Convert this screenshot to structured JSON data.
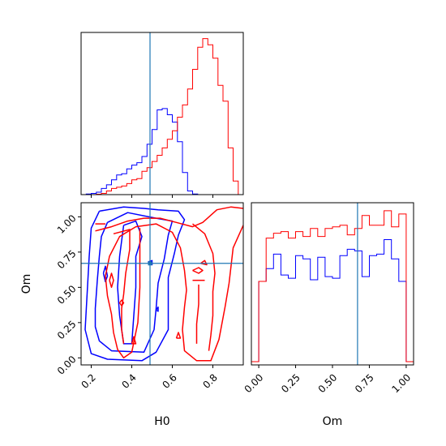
{
  "chart_data": [
    {
      "panel": "H0 marginal",
      "type": "histogram",
      "xlim": [
        0.15,
        0.95
      ],
      "truth_x": 0.49,
      "bins": [
        0.15,
        0.175,
        0.2,
        0.225,
        0.25,
        0.275,
        0.3,
        0.325,
        0.35,
        0.375,
        0.4,
        0.425,
        0.45,
        0.475,
        0.5,
        0.525,
        0.55,
        0.575,
        0.6,
        0.625,
        0.65,
        0.675,
        0.7,
        0.725,
        0.75,
        0.775,
        0.8,
        0.825,
        0.85,
        0.875,
        0.9,
        0.925,
        0.95
      ],
      "series": [
        {
          "color": "#0000ff",
          "values": [
            0,
            0.5,
            1,
            2,
            5,
            8,
            12,
            16,
            17,
            21,
            24,
            26,
            31,
            41,
            53,
            69,
            70,
            65,
            59,
            43,
            18,
            3,
            0.5,
            0,
            0,
            0,
            0,
            0,
            0,
            0,
            0,
            0
          ]
        },
        {
          "color": "#ff0000",
          "values": [
            0,
            0,
            0,
            0.3,
            1,
            3,
            5,
            6,
            7,
            9,
            12,
            13,
            19,
            22,
            27,
            32,
            38,
            45,
            52,
            63,
            73,
            86,
            102,
            120,
            127,
            122,
            111,
            89,
            76,
            38,
            11,
            0
          ]
        }
      ]
    },
    {
      "panel": "Om marginal",
      "type": "histogram",
      "xlim": [
        -0.05,
        1.05
      ],
      "truth_x": 0.67,
      "xticks": [
        "0.00",
        "0.25",
        "0.50",
        "0.75",
        "1.00"
      ],
      "xlabel": "Om",
      "bins": [
        -0.05,
        0.0,
        0.05,
        0.1,
        0.15,
        0.2,
        0.25,
        0.3,
        0.35,
        0.4,
        0.45,
        0.5,
        0.55,
        0.6,
        0.65,
        0.7,
        0.75,
        0.8,
        0.85,
        0.9,
        0.95,
        1.0,
        1.05
      ],
      "series": [
        {
          "color": "#0000ff",
          "values": [
            2,
            52,
            60,
            69,
            56,
            54,
            68,
            66,
            53,
            67,
            55,
            54,
            68,
            72,
            71,
            55,
            68,
            69,
            78,
            66,
            52,
            2
          ]
        },
        {
          "color": "#ff0000",
          "values": [
            2,
            52,
            79,
            82,
            83,
            79,
            83,
            80,
            85,
            80,
            85,
            86,
            87,
            81,
            85,
            93,
            87,
            87,
            96,
            86,
            94,
            2
          ]
        }
      ]
    },
    {
      "panel": "H0 vs Om contours",
      "type": "contour",
      "xlim": [
        0.15,
        0.95
      ],
      "ylim": [
        -0.05,
        1.1
      ],
      "xticks": [
        "0.2",
        "0.4",
        "0.6",
        "0.8"
      ],
      "yticks": [
        "0.00",
        "0.25",
        "0.50",
        "0.75",
        "1.00"
      ],
      "xlabel": "H0",
      "ylabel": "Om",
      "truth": {
        "H0": 0.49,
        "Om": 0.67
      },
      "series": [
        {
          "color": "#0000ff",
          "contours": [
            [
              [
                0.24,
                1.04
              ],
              [
                0.36,
                1.07
              ],
              [
                0.46,
                1.06
              ],
              [
                0.53,
                1.05
              ],
              [
                0.63,
                1.04
              ],
              [
                0.66,
                0.98
              ],
              [
                0.63,
                0.87
              ],
              [
                0.61,
                0.74
              ],
              [
                0.58,
                0.57
              ],
              [
                0.58,
                0.38
              ],
              [
                0.58,
                0.2
              ],
              [
                0.52,
                0.04
              ],
              [
                0.45,
                -0.02
              ],
              [
                0.28,
                -0.01
              ],
              [
                0.2,
                0.03
              ],
              [
                0.17,
                0.2
              ],
              [
                0.18,
                0.46
              ],
              [
                0.19,
                0.72
              ],
              [
                0.2,
                0.92
              ],
              [
                0.24,
                1.04
              ]
            ],
            [
              [
                0.28,
                0.96
              ],
              [
                0.38,
                1.03
              ],
              [
                0.52,
                0.99
              ],
              [
                0.6,
                0.97
              ],
              [
                0.58,
                0.87
              ],
              [
                0.56,
                0.7
              ],
              [
                0.53,
                0.53
              ],
              [
                0.52,
                0.35
              ],
              [
                0.51,
                0.2
              ],
              [
                0.46,
                0.04
              ],
              [
                0.3,
                0.05
              ],
              [
                0.24,
                0.12
              ],
              [
                0.22,
                0.22
              ],
              [
                0.22,
                0.35
              ],
              [
                0.23,
                0.55
              ],
              [
                0.24,
                0.72
              ],
              [
                0.25,
                0.86
              ],
              [
                0.28,
                0.96
              ]
            ],
            [
              [
                0.36,
                0.94
              ],
              [
                0.42,
                0.97
              ],
              [
                0.45,
                0.86
              ],
              [
                0.42,
                0.72
              ],
              [
                0.42,
                0.5
              ],
              [
                0.41,
                0.3
              ],
              [
                0.4,
                0.1
              ],
              [
                0.36,
                0.1
              ],
              [
                0.34,
                0.3
              ],
              [
                0.33,
                0.5
              ],
              [
                0.34,
                0.72
              ],
              [
                0.36,
                0.94
              ]
            ],
            [
              [
                0.26,
                0.6
              ],
              [
                0.27,
                0.65
              ],
              [
                0.28,
                0.58
              ],
              [
                0.27,
                0.54
              ],
              [
                0.26,
                0.6
              ]
            ],
            [
              [
                0.48,
                0.68
              ],
              [
                0.5,
                0.69
              ],
              [
                0.5,
                0.66
              ],
              [
                0.48,
                0.68
              ]
            ],
            [
              [
                0.52,
                0.34
              ],
              [
                0.53,
                0.36
              ],
              [
                0.53,
                0.33
              ],
              [
                0.52,
                0.34
              ]
            ]
          ]
        },
        {
          "color": "#ff0000",
          "contours": [
            [
              [
                0.22,
                0.9
              ],
              [
                0.3,
                0.93
              ],
              [
                0.38,
                0.97
              ],
              [
                0.46,
                0.99
              ],
              [
                0.54,
                0.99
              ],
              [
                0.62,
                0.96
              ],
              [
                0.7,
                0.93
              ],
              [
                0.75,
                0.96
              ],
              [
                0.82,
                1.05
              ],
              [
                0.89,
                1.07
              ],
              [
                0.95,
                1.06
              ]
            ],
            [
              [
                0.95,
                0.94
              ],
              [
                0.9,
                0.78
              ],
              [
                0.88,
                0.53
              ],
              [
                0.86,
                0.36
              ],
              [
                0.83,
                0.13
              ],
              [
                0.79,
                -0.02
              ],
              [
                0.72,
                -0.02
              ],
              [
                0.66,
                0.05
              ],
              [
                0.65,
                0.2
              ],
              [
                0.66,
                0.36
              ],
              [
                0.67,
                0.48
              ],
              [
                0.66,
                0.62
              ],
              [
                0.64,
                0.78
              ],
              [
                0.6,
                0.89
              ],
              [
                0.52,
                0.95
              ],
              [
                0.42,
                0.93
              ],
              [
                0.34,
                0.86
              ],
              [
                0.29,
                0.72
              ],
              [
                0.27,
                0.58
              ],
              [
                0.28,
                0.44
              ],
              [
                0.3,
                0.31
              ],
              [
                0.31,
                0.18
              ],
              [
                0.33,
                0.06
              ],
              [
                0.36,
                0.0
              ],
              [
                0.4,
                0.04
              ],
              [
                0.43,
                0.25
              ],
              [
                0.44,
                0.5
              ],
              [
                0.44,
                0.74
              ],
              [
                0.44,
                0.92
              ]
            ],
            [
              [
                0.31,
                0.88
              ],
              [
                0.39,
                0.91
              ],
              [
                0.39,
                0.77
              ],
              [
                0.37,
                0.6
              ],
              [
                0.36,
                0.45
              ],
              [
                0.35,
                0.35
              ],
              [
                0.35,
                0.2
              ],
              [
                0.36,
                0.1
              ]
            ],
            [
              [
                0.7,
                0.95
              ],
              [
                0.76,
                0.88
              ],
              [
                0.8,
                0.74
              ],
              [
                0.81,
                0.6
              ],
              [
                0.8,
                0.47
              ],
              [
                0.8,
                0.3
              ],
              [
                0.79,
                0.16
              ],
              [
                0.78,
                0.05
              ]
            ],
            [
              [
                0.72,
                0.1
              ],
              [
                0.72,
                0.24
              ],
              [
                0.73,
                0.38
              ],
              [
                0.73,
                0.52
              ]
            ],
            [
              [
                0.22,
                0.95
              ],
              [
                0.27,
                0.95
              ]
            ],
            [
              [
                0.29,
                0.55
              ],
              [
                0.3,
                0.6
              ],
              [
                0.31,
                0.55
              ],
              [
                0.3,
                0.5
              ],
              [
                0.29,
                0.55
              ]
            ],
            [
              [
                0.34,
                0.39
              ],
              [
                0.35,
                0.41
              ],
              [
                0.36,
                0.39
              ],
              [
                0.35,
                0.37
              ],
              [
                0.34,
                0.39
              ]
            ],
            [
              [
                0.7,
                0.62
              ],
              [
                0.73,
                0.64
              ],
              [
                0.75,
                0.62
              ],
              [
                0.73,
                0.6
              ],
              [
                0.7,
                0.62
              ]
            ],
            [
              [
                0.7,
                0.55
              ],
              [
                0.76,
                0.55
              ]
            ],
            [
              [
                0.74,
                0.67
              ],
              [
                0.76,
                0.69
              ],
              [
                0.77,
                0.66
              ],
              [
                0.74,
                0.67
              ]
            ],
            [
              [
                0.62,
                0.14
              ],
              [
                0.63,
                0.18
              ],
              [
                0.64,
                0.14
              ],
              [
                0.62,
                0.14
              ]
            ],
            [
              [
                0.4,
                0.1
              ],
              [
                0.41,
                0.15
              ],
              [
                0.42,
                0.1
              ],
              [
                0.4,
                0.1
              ]
            ]
          ]
        }
      ]
    }
  ]
}
